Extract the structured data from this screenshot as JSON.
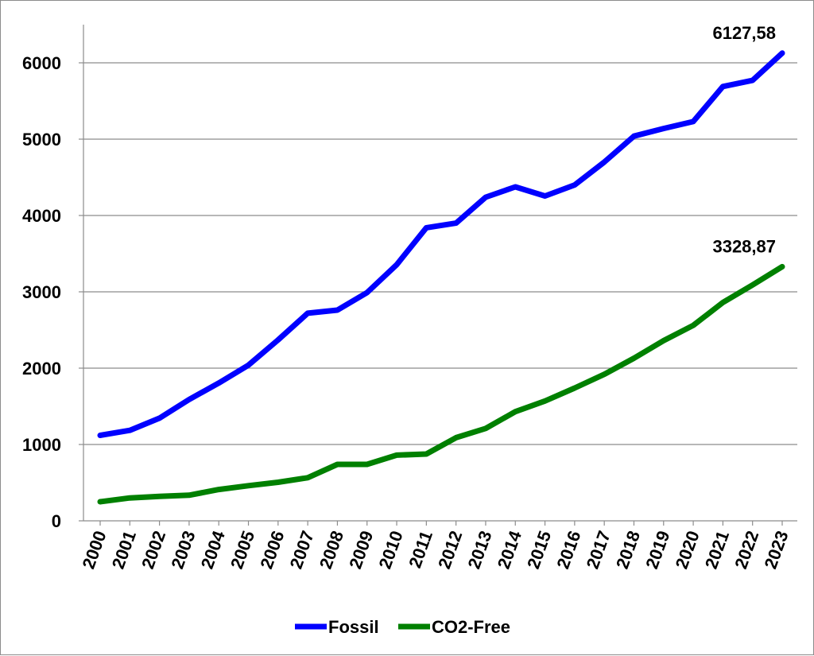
{
  "chart_data": {
    "type": "line",
    "categories": [
      "2000",
      "2001",
      "2002",
      "2003",
      "2004",
      "2005",
      "2006",
      "2007",
      "2008",
      "2009",
      "2010",
      "2011",
      "2012",
      "2013",
      "2014",
      "2015",
      "2016",
      "2017",
      "2018",
      "2019",
      "2020",
      "2021",
      "2022",
      "2023"
    ],
    "series": [
      {
        "name": "Fossil",
        "color": "#0000ff",
        "values": [
          1120,
          1185,
          1345,
          1590,
          1805,
          2040,
          2370,
          2720,
          2760,
          2990,
          3355,
          3840,
          3900,
          4240,
          4375,
          4255,
          4400,
          4700,
          5040,
          5140,
          5230,
          5690,
          5770,
          6127.58
        ],
        "end_label": "6127,58"
      },
      {
        "name": "CO2-Free",
        "color": "#008000",
        "values": [
          250,
          300,
          320,
          335,
          410,
          460,
          505,
          565,
          740,
          740,
          860,
          875,
          1090,
          1210,
          1430,
          1570,
          1740,
          1920,
          2130,
          2360,
          2560,
          2860,
          3090,
          3328.87
        ],
        "end_label": "3328,87"
      }
    ],
    "yticks": [
      0,
      1000,
      2000,
      3000,
      4000,
      5000,
      6000
    ],
    "ylim": [
      0,
      6500
    ],
    "grid": true,
    "legend": "bottom",
    "title": "",
    "xlabel": "",
    "ylabel": ""
  }
}
